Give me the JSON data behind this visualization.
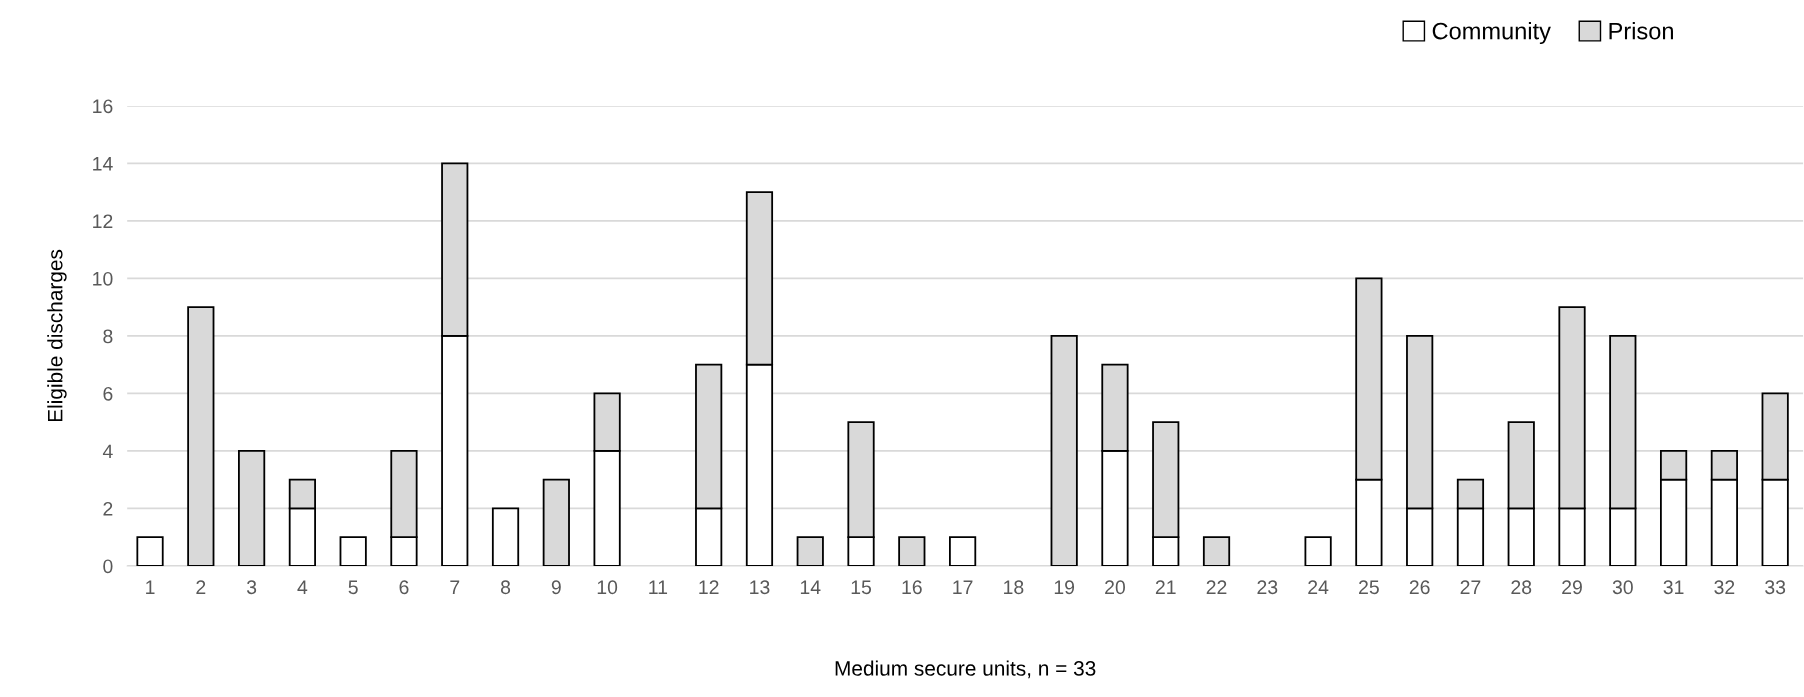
{
  "chart_data": {
    "type": "bar",
    "stacked": true,
    "xlabel": "Medium secure units, n = 33",
    "ylabel": "Eligible discharges",
    "categories": [
      "1",
      "2",
      "3",
      "4",
      "5",
      "6",
      "7",
      "8",
      "9",
      "10",
      "11",
      "12",
      "13",
      "14",
      "15",
      "16",
      "17",
      "18",
      "19",
      "20",
      "21",
      "22",
      "23",
      "24",
      "25",
      "26",
      "27",
      "28",
      "29",
      "30",
      "31",
      "32",
      "33"
    ],
    "series": [
      {
        "name": "Community",
        "color": "#ffffff",
        "values": [
          1,
          0,
          0,
          2,
          1,
          1,
          8,
          2,
          0,
          4,
          0,
          2,
          7,
          0,
          1,
          0,
          1,
          0,
          0,
          4,
          1,
          0,
          0,
          1,
          3,
          2,
          2,
          2,
          2,
          2,
          3,
          3,
          3
        ]
      },
      {
        "name": "Prison",
        "color": "#d9d9d9",
        "values": [
          0,
          9,
          4,
          1,
          0,
          3,
          6,
          0,
          3,
          2,
          0,
          5,
          6,
          1,
          4,
          1,
          0,
          0,
          8,
          3,
          4,
          1,
          0,
          0,
          7,
          6,
          1,
          3,
          7,
          6,
          1,
          1,
          3
        ]
      }
    ],
    "ylim": [
      0,
      16
    ],
    "yticks": [
      0,
      2,
      4,
      6,
      8,
      10,
      12,
      14,
      16
    ],
    "grid": "y",
    "legend": "top right"
  }
}
